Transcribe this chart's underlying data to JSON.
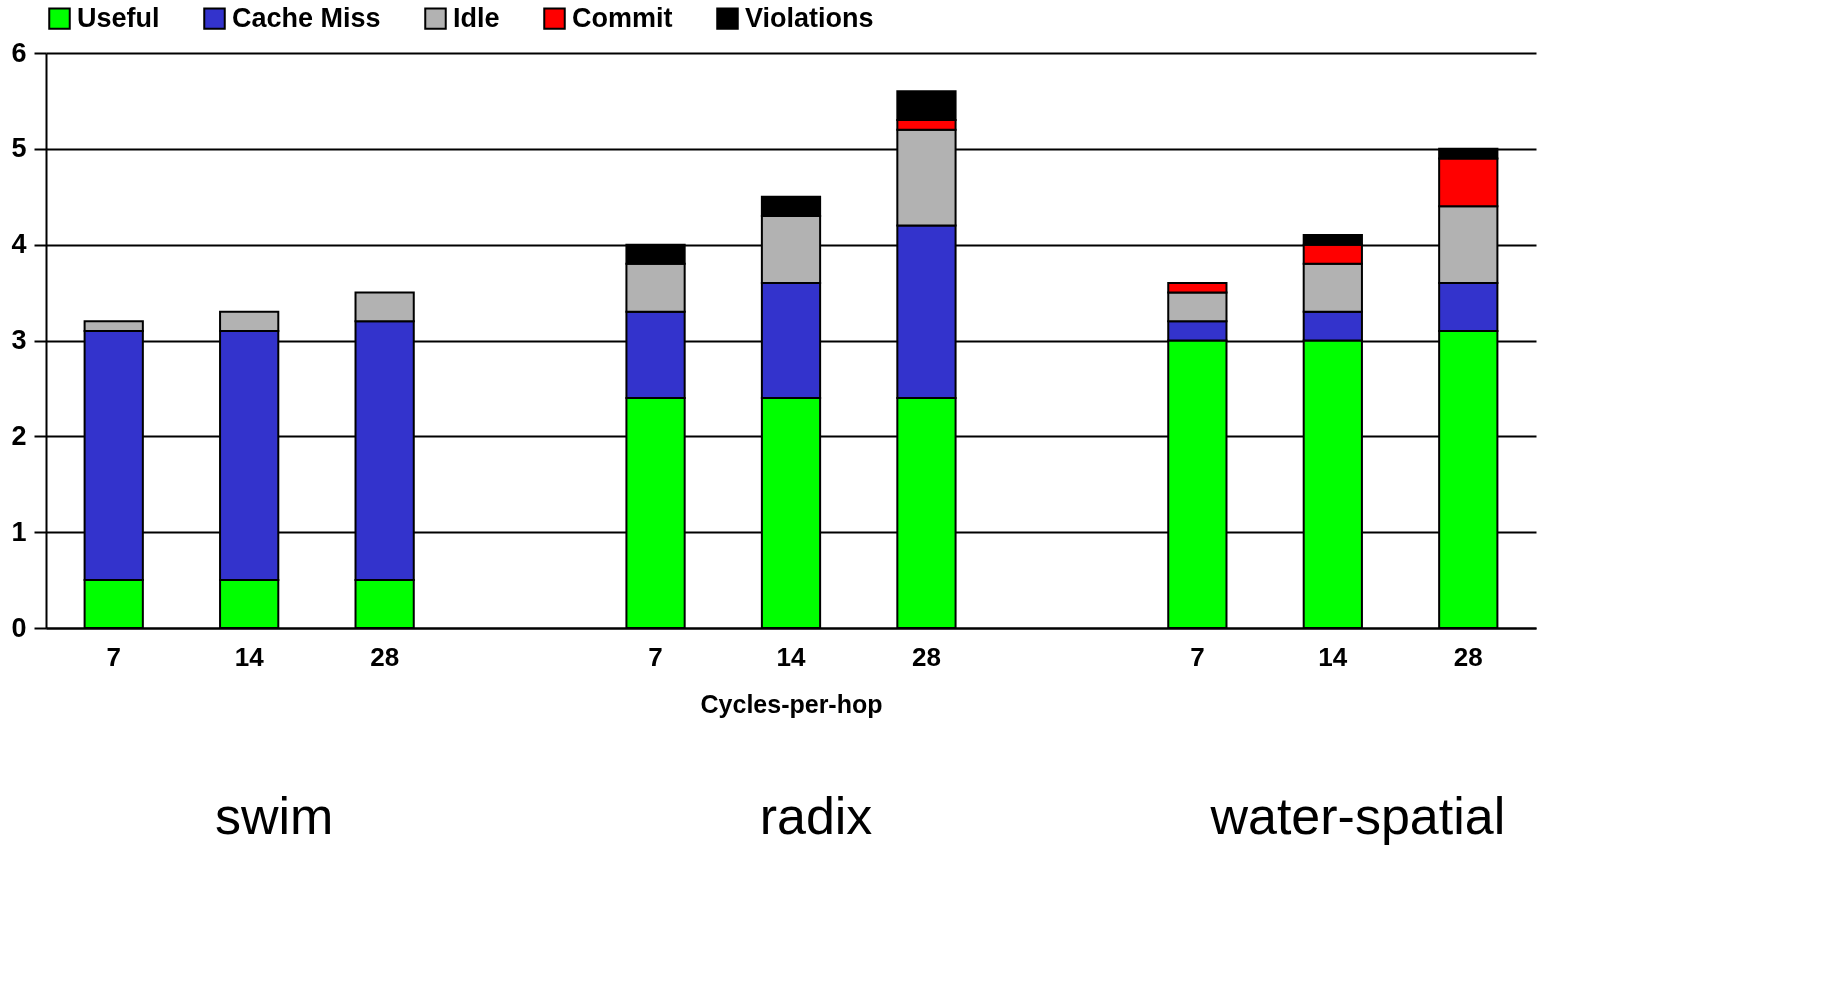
{
  "chart_data": {
    "type": "bar",
    "stacked": true,
    "xlabel": "Cycles-per-hop",
    "categories": [
      "7",
      "14",
      "28",
      null,
      "7",
      "14",
      "28",
      null,
      "7",
      "14",
      "28"
    ],
    "series": [
      {
        "name": "Useful",
        "color": "#00ff00",
        "values": [
          0.5,
          0.5,
          0.5,
          null,
          2.4,
          2.4,
          2.4,
          null,
          3.0,
          3.0,
          3.1
        ]
      },
      {
        "name": "Cache Miss",
        "color": "#3333cc",
        "values": [
          2.6,
          2.6,
          2.7,
          null,
          0.9,
          1.2,
          1.8,
          null,
          0.2,
          0.3,
          0.5
        ]
      },
      {
        "name": "Idle",
        "color": "#b2b2b2",
        "values": [
          0.1,
          0.2,
          0.3,
          null,
          0.5,
          0.7,
          1.0,
          null,
          0.3,
          0.5,
          0.8
        ]
      },
      {
        "name": "Commit",
        "color": "#ff0000",
        "values": [
          null,
          null,
          null,
          null,
          null,
          null,
          0.1,
          null,
          0.1,
          0.2,
          0.5
        ]
      },
      {
        "name": "Violations",
        "color": "#000000",
        "values": [
          null,
          null,
          null,
          null,
          0.2,
          0.2,
          0.3,
          null,
          null,
          0.1,
          0.1
        ]
      }
    ],
    "ylim": [
      0,
      6
    ],
    "yticks": [
      0,
      1,
      2,
      3,
      4,
      5,
      6
    ],
    "grid": "y",
    "legend": "top",
    "annotations": [
      "swim",
      "radix",
      "water-spatial"
    ]
  }
}
